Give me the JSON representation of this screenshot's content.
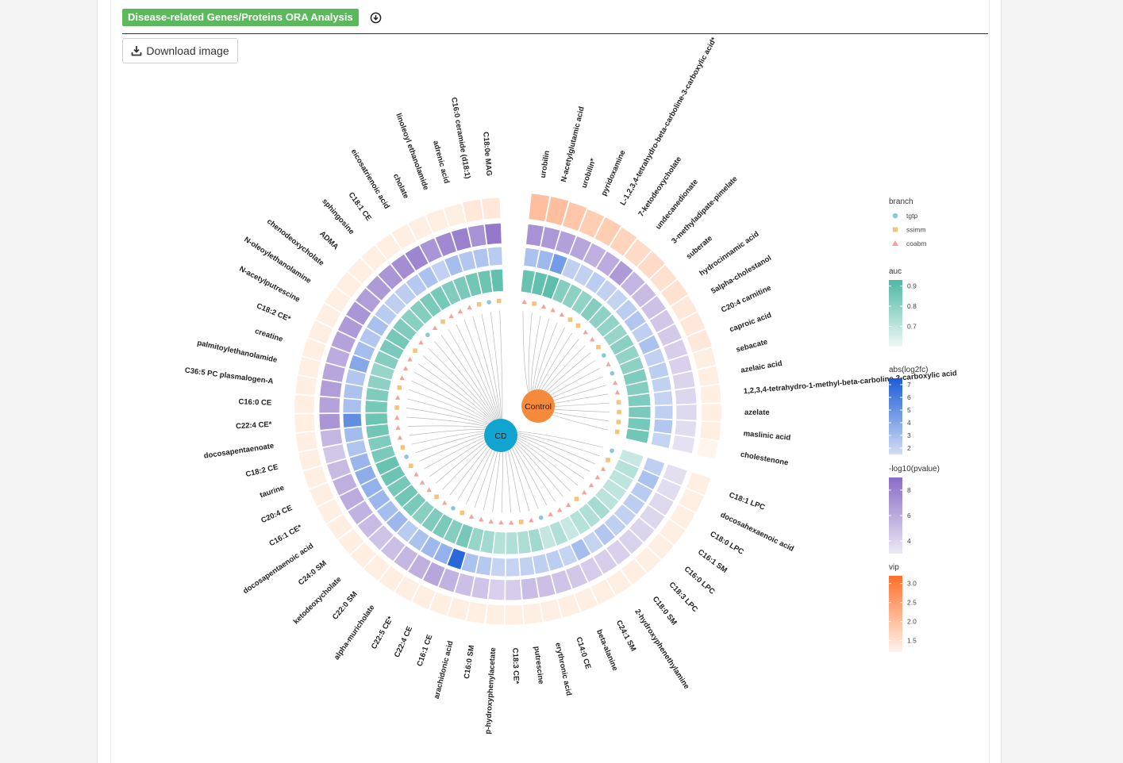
{
  "header": {
    "title": "Disease-related Genes/Proteins ORA Analysis",
    "download_label": "Download image"
  },
  "colors": {
    "header_green": "#5cb85c",
    "cd_node": "#12a4d0",
    "control_node": "#f58a3c",
    "vip_ramp": [
      "#fff5ec",
      "#ff6f2c"
    ],
    "pvalue_ramp": [
      "#ebe9f5",
      "#8a6cc6"
    ],
    "log2fc_ramp": [
      "#d4def5",
      "#1b5cd6"
    ],
    "auc_ramp": [
      "#eef8f6",
      "#4fb8a4"
    ]
  },
  "chart_data": {
    "type": "circular_heatmap",
    "nodes": [
      {
        "label": "CD"
      },
      {
        "label": "Control"
      }
    ],
    "control_group": [
      {
        "name": "urobilin",
        "vip": 2.0,
        "pvalue": 7.2,
        "log2fc": 2.8,
        "auc": 0.88,
        "branch": "coabm"
      },
      {
        "name": "N-acetylglutamic acid",
        "vip": 2.0,
        "pvalue": 6.9,
        "log2fc": 3.2,
        "auc": 0.89,
        "branch": "ssimm"
      },
      {
        "name": "urobilin*",
        "vip": 1.9,
        "pvalue": 6.5,
        "log2fc": 4.6,
        "auc": 0.9,
        "branch": "coabm"
      },
      {
        "name": "pyridoxamine",
        "vip": 1.8,
        "pvalue": 6.2,
        "log2fc": 2.2,
        "auc": 0.82,
        "branch": "coabm"
      },
      {
        "name": "L-1,2,3,4-tetrahydro-beta-carboline-3-carboxylic acid*",
        "vip": 1.8,
        "pvalue": 5.8,
        "log2fc": 2.1,
        "auc": 0.8,
        "branch": "coabm"
      },
      {
        "name": "7-ketodeoxycholate",
        "vip": 1.7,
        "pvalue": 6.0,
        "log2fc": 2.3,
        "auc": 0.79,
        "branch": "ssimm"
      },
      {
        "name": "undecanedionate",
        "vip": 1.6,
        "pvalue": 6.8,
        "log2fc": 2.1,
        "auc": 0.82,
        "branch": "ssimm"
      },
      {
        "name": "3-methyladipate-pimelate",
        "vip": 1.6,
        "pvalue": 5.5,
        "log2fc": 2.0,
        "auc": 0.8,
        "branch": "coabm"
      },
      {
        "name": "suberate",
        "vip": 1.5,
        "pvalue": 5.2,
        "log2fc": 2.3,
        "auc": 0.79,
        "branch": "coabm"
      },
      {
        "name": "hydrocinnamic acid",
        "vip": 1.5,
        "pvalue": 4.9,
        "log2fc": 2.6,
        "auc": 0.78,
        "branch": "ssimm"
      },
      {
        "name": "5alpha-cholestanol",
        "vip": 1.4,
        "pvalue": 4.7,
        "log2fc": 2.2,
        "auc": 0.81,
        "branch": "tgtp"
      },
      {
        "name": "C20:4 carnitine",
        "vip": 1.4,
        "pvalue": 4.5,
        "log2fc": 2.8,
        "auc": 0.79,
        "branch": "coabm"
      },
      {
        "name": "caproic acid",
        "vip": 1.4,
        "pvalue": 4.3,
        "log2fc": 2.1,
        "auc": 0.8,
        "branch": "tgtp"
      },
      {
        "name": "sebacate",
        "vip": 1.3,
        "pvalue": 4.2,
        "log2fc": 2.3,
        "auc": 0.83,
        "branch": "coabm"
      },
      {
        "name": "azelaic acid",
        "vip": 1.3,
        "pvalue": 4.0,
        "log2fc": 2.1,
        "auc": 0.82,
        "branch": "coabm"
      },
      {
        "name": "1,2,3,4-tetrahydro-1-methyl-beta-carboline-3-carboxylic acid",
        "vip": 1.3,
        "pvalue": 3.9,
        "log2fc": 2.0,
        "auc": 0.83,
        "branch": "ssimm"
      },
      {
        "name": "azelate",
        "vip": 1.3,
        "pvalue": 3.8,
        "log2fc": 2.2,
        "auc": 0.84,
        "branch": "ssimm"
      },
      {
        "name": "maslinic acid",
        "vip": 1.3,
        "pvalue": 3.6,
        "log2fc": 2.6,
        "auc": 0.85,
        "branch": "ssimm"
      },
      {
        "name": "cholestenone",
        "vip": 1.2,
        "pvalue": 3.4,
        "log2fc": 2.0,
        "auc": 0.86,
        "branch": "ssimm"
      }
    ],
    "cd_group": [
      {
        "name": "C18:1 LPC",
        "vip": 1.3,
        "pvalue": 3.5,
        "log2fc": 2.2,
        "auc": 0.68,
        "branch": "tgtp"
      },
      {
        "name": "docosahexaenoic acid",
        "vip": 1.3,
        "pvalue": 3.6,
        "log2fc": 2.8,
        "auc": 0.72,
        "branch": "ssimm"
      },
      {
        "name": "C18:0 LPC",
        "vip": 1.3,
        "pvalue": 3.8,
        "log2fc": 2.4,
        "auc": 0.7,
        "branch": "coabm"
      },
      {
        "name": "C16:1 SM",
        "vip": 1.3,
        "pvalue": 3.9,
        "log2fc": 2.3,
        "auc": 0.7,
        "branch": "coabm"
      },
      {
        "name": "C16:0 LPC",
        "vip": 1.3,
        "pvalue": 4.0,
        "log2fc": 2.1,
        "auc": 0.71,
        "branch": "coabm"
      },
      {
        "name": "C18:3 LPC",
        "vip": 1.3,
        "pvalue": 4.1,
        "log2fc": 2.2,
        "auc": 0.75,
        "branch": "coabm"
      },
      {
        "name": "C18:0 SM",
        "vip": 1.3,
        "pvalue": 4.2,
        "log2fc": 2.6,
        "auc": 0.73,
        "branch": "ssimm"
      },
      {
        "name": "2-hydroxyphenethylamine",
        "vip": 1.3,
        "pvalue": 4.3,
        "log2fc": 2.0,
        "auc": 0.72,
        "branch": "coabm"
      },
      {
        "name": "C24:1 SM",
        "vip": 1.3,
        "pvalue": 4.4,
        "log2fc": 3.0,
        "auc": 0.68,
        "branch": "coabm"
      },
      {
        "name": "beta-alanine",
        "vip": 1.3,
        "pvalue": 4.6,
        "log2fc": 2.0,
        "auc": 0.73,
        "branch": "coabm"
      },
      {
        "name": "C14:0 CE",
        "vip": 1.3,
        "pvalue": 4.8,
        "log2fc": 2.3,
        "auc": 0.69,
        "branch": "tgtp"
      },
      {
        "name": "erythronic acid",
        "vip": 1.3,
        "pvalue": 5.0,
        "log2fc": 2.2,
        "auc": 0.76,
        "branch": "coabm"
      },
      {
        "name": "putrescine",
        "vip": 1.3,
        "pvalue": 5.1,
        "log2fc": 2.1,
        "auc": 0.74,
        "branch": "ssimm"
      },
      {
        "name": "C18:3 CE*",
        "vip": 1.3,
        "pvalue": 4.4,
        "log2fc": 2.0,
        "auc": 0.73,
        "branch": "coabm"
      },
      {
        "name": "p-hydroxyphenylacetate",
        "vip": 1.3,
        "pvalue": 4.2,
        "log2fc": 2.0,
        "auc": 0.72,
        "branch": "coabm"
      },
      {
        "name": "C16:0 SM",
        "vip": 1.3,
        "pvalue": 4.8,
        "log2fc": 2.5,
        "auc": 0.76,
        "branch": "coabm"
      },
      {
        "name": "arachidonic acid",
        "vip": 1.3,
        "pvalue": 5.0,
        "log2fc": 2.8,
        "auc": 0.78,
        "branch": "coabm"
      },
      {
        "name": "C16:1 CE",
        "vip": 1.3,
        "pvalue": 5.6,
        "log2fc": 7.0,
        "auc": 0.85,
        "branch": "coabm"
      },
      {
        "name": "C22:4 CE",
        "vip": 1.3,
        "pvalue": 6.2,
        "log2fc": 3.6,
        "auc": 0.82,
        "branch": "ssimm"
      },
      {
        "name": "C22:5 CE*",
        "vip": 1.3,
        "pvalue": 5.8,
        "log2fc": 3.2,
        "auc": 0.84,
        "branch": "tgtp"
      },
      {
        "name": "alpha-muricholate",
        "vip": 1.3,
        "pvalue": 5.4,
        "log2fc": 2.8,
        "auc": 0.83,
        "branch": "coabm"
      },
      {
        "name": "C22:0 SM",
        "vip": 1.3,
        "pvalue": 5.0,
        "log2fc": 2.4,
        "auc": 0.81,
        "branch": "ssimm"
      },
      {
        "name": "ketodeoxycholate",
        "vip": 1.3,
        "pvalue": 4.8,
        "log2fc": 3.3,
        "auc": 0.84,
        "branch": "coabm"
      },
      {
        "name": "C24:0 SM",
        "vip": 1.3,
        "pvalue": 5.2,
        "log2fc": 3.0,
        "auc": 0.86,
        "branch": "coabm"
      },
      {
        "name": "docosapentaenoic acid",
        "vip": 1.3,
        "pvalue": 5.6,
        "log2fc": 3.3,
        "auc": 0.85,
        "branch": "coabm"
      },
      {
        "name": "C16:1 CE*",
        "vip": 1.3,
        "pvalue": 6.0,
        "log2fc": 3.6,
        "auc": 0.87,
        "branch": "ssimm"
      },
      {
        "name": "C20:4 CE",
        "vip": 1.3,
        "pvalue": 5.8,
        "log2fc": 3.8,
        "auc": 0.88,
        "branch": "tgtp"
      },
      {
        "name": "taurine",
        "vip": 1.3,
        "pvalue": 5.2,
        "log2fc": 3.4,
        "auc": 0.84,
        "branch": "ssimm"
      },
      {
        "name": "C18:2 CE",
        "vip": 1.3,
        "pvalue": 4.6,
        "log2fc": 2.7,
        "auc": 0.83,
        "branch": "coabm"
      },
      {
        "name": "docosapentaenoate",
        "vip": 1.3,
        "pvalue": 5.4,
        "log2fc": 3.1,
        "auc": 0.86,
        "branch": "coabm"
      },
      {
        "name": "C22:4 CE*",
        "vip": 1.3,
        "pvalue": 7.0,
        "log2fc": 5.2,
        "auc": 0.87,
        "branch": "coabm"
      },
      {
        "name": "C16:0 CE",
        "vip": 1.3,
        "pvalue": 6.4,
        "log2fc": 2.9,
        "auc": 0.85,
        "branch": "ssimm"
      },
      {
        "name": "C36:5 PC plasmalogen-A",
        "vip": 1.3,
        "pvalue": 6.6,
        "log2fc": 2.8,
        "auc": 0.83,
        "branch": "coabm"
      },
      {
        "name": "palmitoylethanolamide",
        "vip": 1.3,
        "pvalue": 6.2,
        "log2fc": 2.6,
        "auc": 0.8,
        "branch": "ssimm"
      },
      {
        "name": "creatine",
        "vip": 1.3,
        "pvalue": 6.0,
        "log2fc": 4.0,
        "auc": 0.78,
        "branch": "coabm"
      },
      {
        "name": "C18:2 CE*",
        "vip": 1.3,
        "pvalue": 6.4,
        "log2fc": 3.0,
        "auc": 0.82,
        "branch": "coabm"
      },
      {
        "name": "N-acetylputrescine",
        "vip": 1.3,
        "pvalue": 6.8,
        "log2fc": 2.6,
        "auc": 0.84,
        "branch": "coabm"
      },
      {
        "name": "N-oleoylethanolamine",
        "vip": 1.3,
        "pvalue": 7.0,
        "log2fc": 2.9,
        "auc": 0.85,
        "branch": "ssimm"
      },
      {
        "name": "chenodeoxycholate",
        "vip": 1.3,
        "pvalue": 6.6,
        "log2fc": 2.4,
        "auc": 0.83,
        "branch": "coabm"
      },
      {
        "name": "ADMA",
        "vip": 1.3,
        "pvalue": 6.8,
        "log2fc": 2.2,
        "auc": 0.81,
        "branch": "tgtp"
      },
      {
        "name": "sphingosine",
        "vip": 1.3,
        "pvalue": 7.0,
        "log2fc": 2.3,
        "auc": 0.82,
        "branch": "coabm"
      },
      {
        "name": "C18:1 CE",
        "vip": 1.3,
        "pvalue": 7.4,
        "log2fc": 2.5,
        "auc": 0.84,
        "branch": "ssimm"
      },
      {
        "name": "eicosatrienoic acid",
        "vip": 1.3,
        "pvalue": 7.8,
        "log2fc": 2.8,
        "auc": 0.85,
        "branch": "coabm"
      },
      {
        "name": "cholate",
        "vip": 1.3,
        "pvalue": 7.0,
        "log2fc": 2.1,
        "auc": 0.83,
        "branch": "coabm"
      },
      {
        "name": "linoleoyl ethanolamide",
        "vip": 1.3,
        "pvalue": 7.6,
        "log2fc": 3.0,
        "auc": 0.84,
        "branch": "coabm"
      },
      {
        "name": "adrenic acid",
        "vip": 1.3,
        "pvalue": 8.0,
        "log2fc": 2.6,
        "auc": 0.86,
        "branch": "ssimm"
      },
      {
        "name": "C16:0 ceramide (d18:1)",
        "vip": 1.4,
        "pvalue": 7.2,
        "log2fc": 2.7,
        "auc": 0.87,
        "branch": "tgtp"
      },
      {
        "name": "C18:0e MAG",
        "vip": 1.4,
        "pvalue": 8.4,
        "log2fc": 2.4,
        "auc": 0.89,
        "branch": "ssimm"
      }
    ],
    "legend": {
      "branch": {
        "title": "branch",
        "items": [
          "tgtp",
          "ssimm",
          "coabm"
        ]
      },
      "auc": {
        "title": "auc",
        "ticks": [
          "0.9",
          "0.8",
          "0.7"
        ],
        "range": [
          0.6,
          0.93
        ]
      },
      "log2fc": {
        "title": "abs(log2fc)",
        "ticks": [
          "7",
          "6",
          "5",
          "4",
          "3",
          "2"
        ],
        "range": [
          1.5,
          7.5
        ]
      },
      "pvalue": {
        "title": "-log10(pvalue)",
        "ticks": [
          "8",
          "6",
          "4"
        ],
        "range": [
          3,
          9
        ]
      },
      "vip": {
        "title": "vip",
        "ticks": [
          "3.0",
          "2.5",
          "2.0",
          "1.5"
        ],
        "range": [
          1.2,
          3.2
        ]
      }
    }
  }
}
